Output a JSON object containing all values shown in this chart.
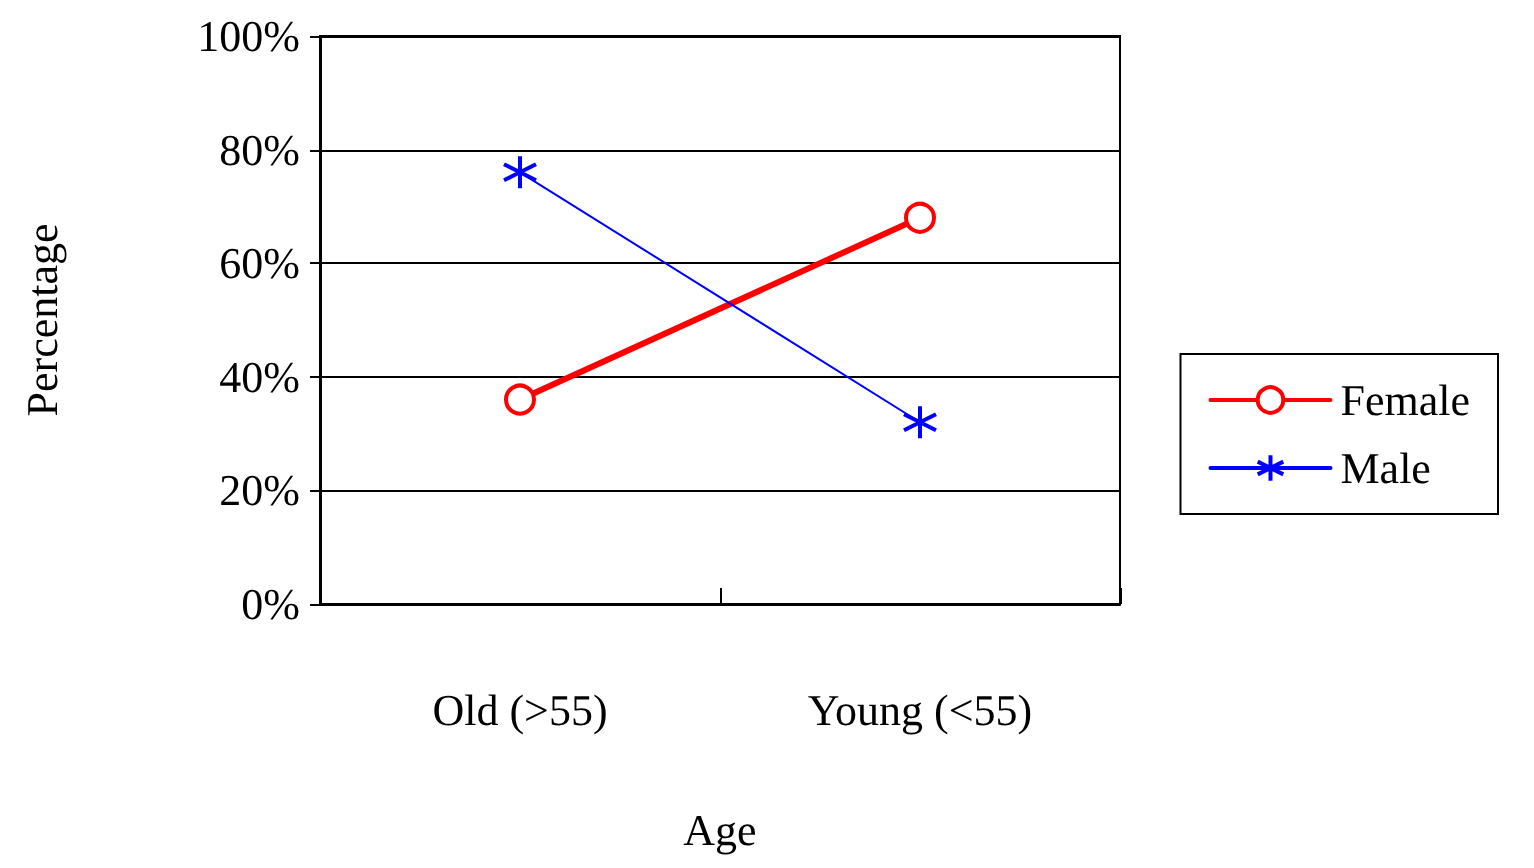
{
  "chart_data": {
    "type": "line",
    "xlabel": "Age",
    "ylabel": "Percentage",
    "categories": [
      "Old (>55)",
      "Young (<55)"
    ],
    "series": [
      {
        "name": "Female",
        "color": "#ff0000",
        "values": [
          36,
          68
        ],
        "marker": "circle"
      },
      {
        "name": "Male",
        "color": "#0000ff",
        "values": [
          76,
          32
        ],
        "marker": "cross"
      }
    ],
    "ylim": [
      0,
      100
    ],
    "yticks": [
      {
        "value": 0,
        "label": "0%"
      },
      {
        "value": 20,
        "label": "20%"
      },
      {
        "value": 40,
        "label": "40%"
      },
      {
        "value": 60,
        "label": "60%"
      },
      {
        "value": 80,
        "label": "80%"
      },
      {
        "value": 100,
        "label": "100%"
      }
    ],
    "grid": "y",
    "legend": "right",
    "line_style": "solid"
  }
}
